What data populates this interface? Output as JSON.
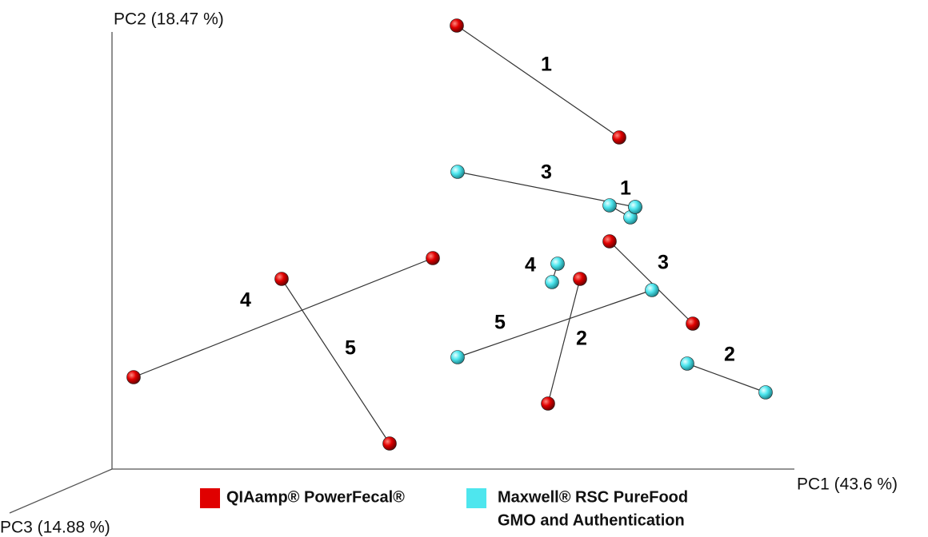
{
  "axes": {
    "pc1": "PC1 (43.6 %)",
    "pc2": "PC2 (18.47 %)",
    "pc3": "PC3 (14.88 %)"
  },
  "legend": [
    {
      "lines": [
        "QIAamp® PowerFecal®"
      ],
      "color": "#e00000"
    },
    {
      "lines": [
        "Maxwell® RSC PureFood",
        "GMO and Authentication"
      ],
      "color": "#4ee6ee"
    }
  ],
  "pairs": [
    {
      "label": "1",
      "series": 0
    },
    {
      "label": "2",
      "series": 0
    },
    {
      "label": "3",
      "series": 0
    },
    {
      "label": "4",
      "series": 0
    },
    {
      "label": "5",
      "series": 0
    },
    {
      "label": "1",
      "series": 1
    },
    {
      "label": "2",
      "series": 1
    },
    {
      "label": "3",
      "series": 1
    },
    {
      "label": "4",
      "series": 1
    },
    {
      "label": "5",
      "series": 1
    }
  ]
}
